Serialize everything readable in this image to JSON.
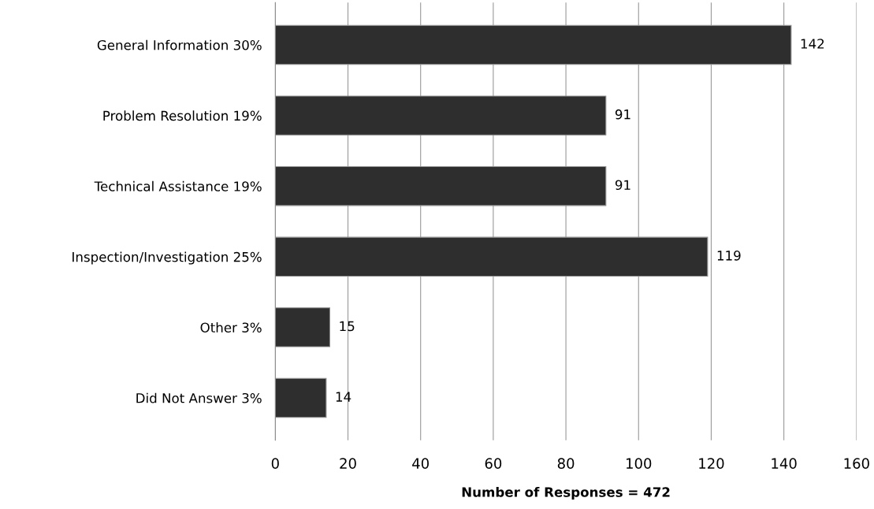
{
  "chart_data": {
    "type": "bar",
    "orientation": "horizontal",
    "xlabel": "Number of Responses = 472",
    "categories": [
      "General Information 30%",
      "Problem Resolution 19%",
      "Technical Assistance 19%",
      "Inspection/Investigation 25%",
      "Other 3%",
      "Did Not Answer 3%"
    ],
    "values": [
      142,
      91,
      91,
      119,
      15,
      14
    ],
    "color": "#2e2e2e",
    "xlim": [
      0,
      160
    ],
    "xticks": [
      0,
      20,
      40,
      60,
      80,
      100,
      120,
      140,
      160
    ],
    "grid": "x",
    "data_labels": true
  }
}
